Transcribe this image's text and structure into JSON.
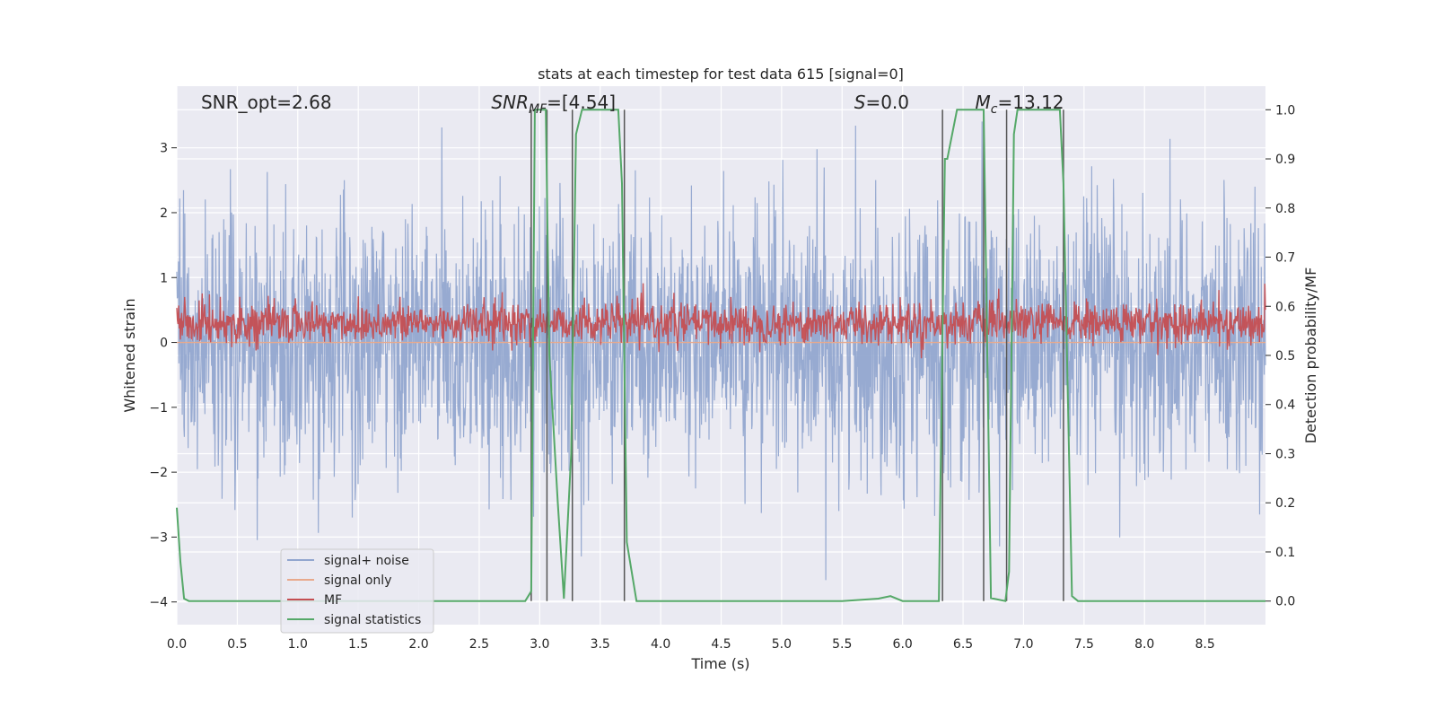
{
  "chart_data": {
    "type": "line",
    "title": "stats at each timestep for test data 615 [signal=0]",
    "xlabel": "Time (s)",
    "ylabel_left": "Whitened strain",
    "ylabel_right": "Detection probability/MF",
    "xlim": [
      0.0,
      9.0
    ],
    "ylim_left": [
      -4.35,
      3.95
    ],
    "ylim_right": [
      -0.048,
      1.048
    ],
    "x_ticks": [
      0.0,
      0.5,
      1.0,
      1.5,
      2.0,
      2.5,
      3.0,
      3.5,
      4.0,
      4.5,
      5.0,
      5.5,
      6.0,
      6.5,
      7.0,
      7.5,
      8.0,
      8.5
    ],
    "x_tick_labels": [
      "0.0",
      "0.5",
      "1.0",
      "1.5",
      "2.0",
      "2.5",
      "3.0",
      "3.5",
      "4.0",
      "4.5",
      "5.0",
      "5.5",
      "6.0",
      "6.5",
      "7.0",
      "7.5",
      "8.0",
      "8.5"
    ],
    "y_left_ticks": [
      -4,
      -3,
      -2,
      -1,
      0,
      1,
      2,
      3
    ],
    "y_left_tick_labels": [
      "−4",
      "−3",
      "−2",
      "−1",
      "0",
      "1",
      "2",
      "3"
    ],
    "y_right_ticks": [
      0.0,
      0.1,
      0.2,
      0.3,
      0.4,
      0.5,
      0.6,
      0.7,
      0.8,
      0.9,
      1.0
    ],
    "y_right_tick_labels": [
      "0.0",
      "0.1",
      "0.2",
      "0.3",
      "0.4",
      "0.5",
      "0.6",
      "0.7",
      "0.8",
      "0.9",
      "1.0"
    ],
    "grid": true,
    "legend_position": "lower-left",
    "annotations": [
      {
        "base": "SNR_opt=2.68",
        "sub": "",
        "tail": "",
        "italic": false,
        "x": 0.2
      },
      {
        "base": "SNR",
        "sub": "MF",
        "tail": "=[4.54]",
        "italic": true,
        "x": 2.6
      },
      {
        "base": "S",
        "sub": "",
        "tail": "=0.0",
        "italic": true,
        "x": 5.6
      },
      {
        "base": "M",
        "sub": "c",
        "tail": "=13.12",
        "italic": true,
        "x": 6.6
      }
    ],
    "series": [
      {
        "name": "signal+ noise",
        "color": "#92a6cf",
        "axis": "left",
        "kind": "noise",
        "amplitude": 1.0
      },
      {
        "name": "signal only",
        "color": "#e8a98c",
        "axis": "left",
        "kind": "flat",
        "value": 0.0
      },
      {
        "name": "MF",
        "color": "#c44e52",
        "axis": "left",
        "kind": "noise",
        "center": 0.3,
        "amplitude": 0.16
      },
      {
        "name": "signal statistics",
        "color": "#55a868",
        "axis": "right",
        "x": [
          0.0,
          0.03,
          0.06,
          0.1,
          0.5,
          1.0,
          1.5,
          2.0,
          2.5,
          2.7,
          2.88,
          2.93,
          2.96,
          3.0,
          3.05,
          3.08,
          3.15,
          3.2,
          3.26,
          3.3,
          3.35,
          3.4,
          3.5,
          3.6,
          3.65,
          3.68,
          3.72,
          3.8,
          4.0,
          4.5,
          5.0,
          5.5,
          5.8,
          5.9,
          6.0,
          6.2,
          6.3,
          6.35,
          6.37,
          6.45,
          6.6,
          6.67,
          6.73,
          6.85,
          6.88,
          6.92,
          6.95,
          7.1,
          7.3,
          7.33,
          7.4,
          7.45,
          8.0,
          8.5,
          9.0
        ],
        "y": [
          0.19,
          0.08,
          0.005,
          0.0,
          0.0,
          0.0,
          0.0,
          0.0,
          0.0,
          0.0,
          0.0,
          0.02,
          1.0,
          1.0,
          1.0,
          0.5,
          0.2,
          0.005,
          0.3,
          0.95,
          1.0,
          1.0,
          1.0,
          1.0,
          1.0,
          0.85,
          0.12,
          0.0,
          0.0,
          0.0,
          0.0,
          0.0,
          0.005,
          0.01,
          0.0,
          0.0,
          0.0,
          0.9,
          0.9,
          1.0,
          1.0,
          1.0,
          0.006,
          0.0,
          0.06,
          0.95,
          1.0,
          1.0,
          1.0,
          0.85,
          0.01,
          0.0,
          0.0,
          0.0,
          0.0
        ]
      }
    ],
    "vertical_markers": [
      2.93,
      3.06,
      3.27,
      3.7,
      6.33,
      6.67,
      6.86,
      7.33
    ]
  }
}
